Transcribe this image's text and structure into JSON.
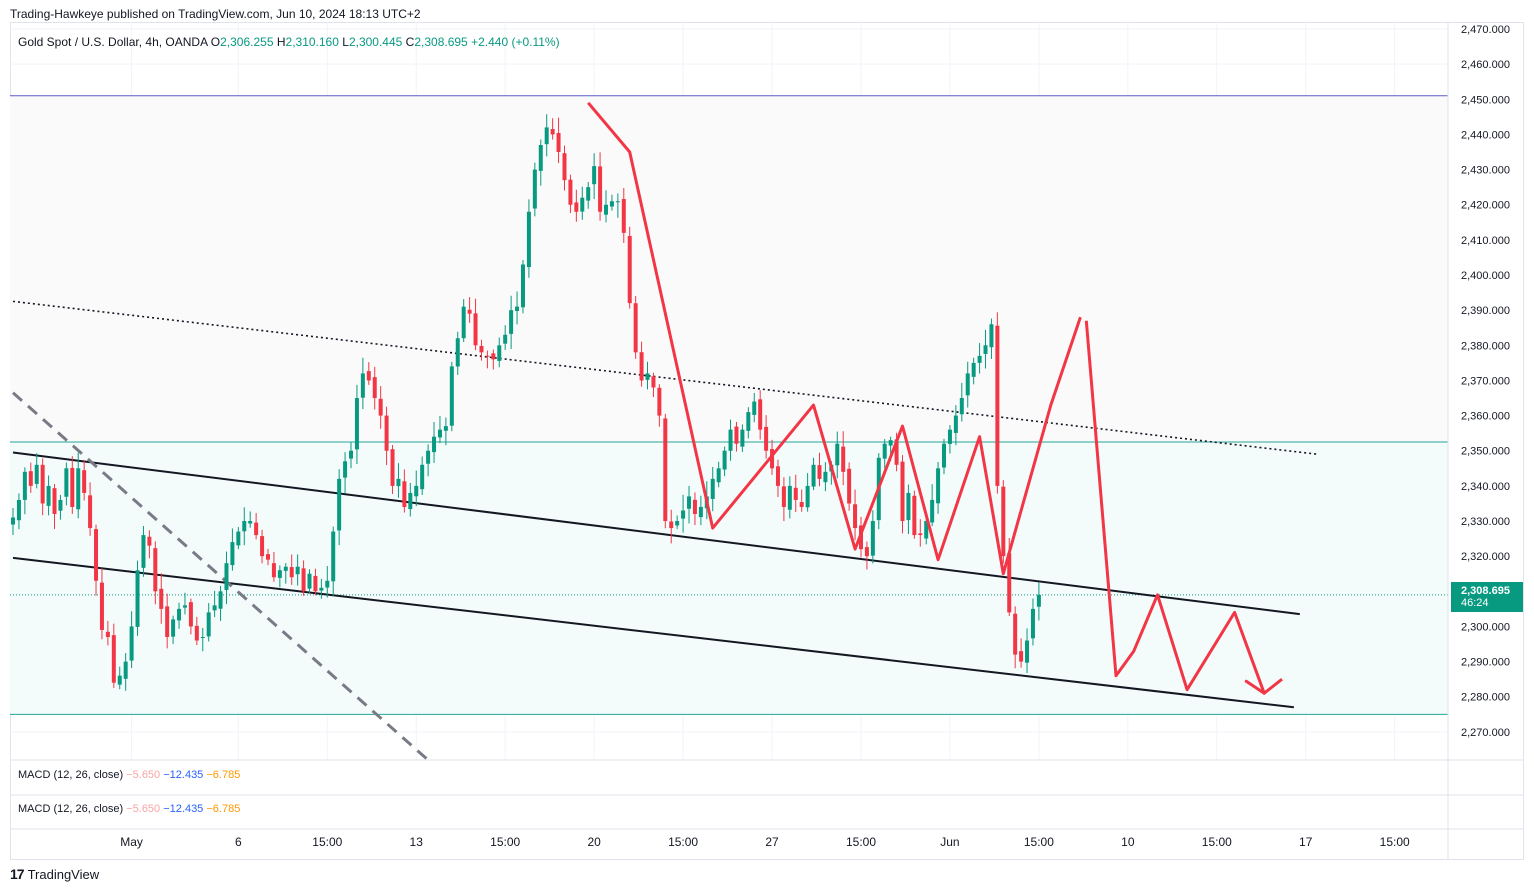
{
  "header": {
    "published": "Trading-Hawkeye published on TradingView.com, Jun 10, 2024 18:13 UTC+2"
  },
  "legend": {
    "symbol": "Gold Spot / U.S. Dollar, 4h, OANDA",
    "o_label": "O",
    "o": "2,306.255",
    "h_label": "H",
    "h": "2,310.160",
    "l_label": "L",
    "l": "2,300.445",
    "c_label": "C",
    "c": "2,308.695",
    "change": "+2.440 (+0.11%)"
  },
  "macd_panes": [
    {
      "label": "MACD (12, 26, close)",
      "v1": "−5.650",
      "v2": "−12.435",
      "v3": "−6.785"
    },
    {
      "label": "MACD (12, 26, close)",
      "v1": "−5.650",
      "v2": "−12.435",
      "v3": "−6.785"
    }
  ],
  "price_tag": {
    "price": "2,308.695",
    "countdown": "46:24"
  },
  "brand": {
    "logo": "17",
    "name": "TradingView"
  },
  "colors": {
    "up": "#089981",
    "down": "#f23645",
    "path": "#f23645",
    "hline_blue": "#5b5fc7",
    "hline_teal": "#26a69a",
    "grid": "#f0f3fa"
  },
  "chart_data": {
    "type": "candlestick",
    "symbol": "XAUUSD",
    "timeframe": "4h",
    "ylim": [
      2262,
      2472
    ],
    "y_ticks": [
      2270,
      2280,
      2290,
      2300,
      2310,
      2320,
      2330,
      2340,
      2350,
      2360,
      2370,
      2380,
      2390,
      2400,
      2410,
      2420,
      2430,
      2440,
      2450,
      2460,
      2470
    ],
    "y_tick_labels": [
      "2,270.000",
      "2,280.000",
      "2,290.000",
      "2,300.000",
      "2,310.000",
      "2,320.000",
      "2,330.000",
      "2,340.000",
      "2,350.000",
      "2,360.000",
      "2,370.000",
      "2,380.000",
      "2,390.000",
      "2,400.000",
      "2,410.000",
      "2,420.000",
      "2,430.000",
      "2,440.000",
      "2,450.000",
      "2,460.000",
      "2,470.000"
    ],
    "x_ticks": [
      {
        "bar": 20,
        "label": "May"
      },
      {
        "bar": 38,
        "label": "6"
      },
      {
        "bar": 53,
        "label": "15:00"
      },
      {
        "bar": 68,
        "label": "13"
      },
      {
        "bar": 83,
        "label": "15:00"
      },
      {
        "bar": 98,
        "label": "20"
      },
      {
        "bar": 113,
        "label": "15:00"
      },
      {
        "bar": 128,
        "label": "27"
      },
      {
        "bar": 143,
        "label": "15:00"
      },
      {
        "bar": 158,
        "label": "Jun"
      },
      {
        "bar": 173,
        "label": "15:00"
      },
      {
        "bar": 188,
        "label": "10"
      },
      {
        "bar": 203,
        "label": "15:00"
      },
      {
        "bar": 218,
        "label": "17"
      },
      {
        "bar": 233,
        "label": "15:00"
      }
    ],
    "closes": [
      2331,
      2336,
      2344,
      2340,
      2346,
      2335,
      2340,
      2332,
      2336,
      2345,
      2334,
      2345,
      2338,
      2328,
      2313,
      2299,
      2297,
      2284,
      2286,
      2290,
      2300,
      2316,
      2326,
      2323,
      2310,
      2305,
      2297,
      2302,
      2305,
      2306,
      2300,
      2296,
      2297,
      2304,
      2306,
      2310,
      2318,
      2324,
      2327,
      2330,
      2330,
      2326,
      2320,
      2319,
      2314,
      2316,
      2317,
      2314,
      2317,
      2310,
      2315,
      2310,
      2311,
      2313,
      2327,
      2342,
      2347,
      2350,
      2365,
      2372,
      2370,
      2365,
      2360,
      2350,
      2340,
      2342,
      2334,
      2338,
      2340,
      2346,
      2350,
      2354,
      2356,
      2357,
      2374,
      2382,
      2391,
      2389,
      2380,
      2378,
      2377,
      2376,
      2380,
      2383,
      2390,
      2391,
      2403,
      2418,
      2430,
      2437,
      2442,
      2440,
      2435,
      2427,
      2420,
      2418,
      2422,
      2425,
      2431,
      2418,
      2420,
      2421,
      2421,
      2412,
      2392,
      2378,
      2370,
      2372,
      2368,
      2360,
      2330,
      2328,
      2330,
      2333,
      2337,
      2332,
      2334,
      2337,
      2342,
      2345,
      2350,
      2356,
      2352,
      2356,
      2361,
      2364,
      2356,
      2350,
      2345,
      2340,
      2334,
      2340,
      2336,
      2334,
      2340,
      2346,
      2342,
      2344,
      2346,
      2352,
      2344,
      2335,
      2328,
      2322,
      2320,
      2330,
      2348,
      2352,
      2353,
      2346,
      2330,
      2338,
      2326,
      2326,
      2330,
      2336,
      2345,
      2352,
      2356,
      2360,
      2365,
      2372,
      2375,
      2377,
      2380,
      2386,
      2340,
      2320,
      2304,
      2292,
      2290,
      2296,
      2305,
      2309
    ]
  },
  "annotations": {
    "hlines": [
      {
        "price": 2451,
        "color": "hline_blue"
      },
      {
        "price": 2352.5,
        "color": "hline_teal"
      },
      {
        "price": 2275,
        "color": "hline_teal"
      }
    ],
    "trendlines": [
      {
        "style": "solid",
        "from": [
          0,
          2349.5
        ],
        "to": [
          217,
          2303.5
        ]
      },
      {
        "style": "solid",
        "from": [
          0,
          2319.5
        ],
        "to": [
          216,
          2277
        ]
      },
      {
        "style": "dotted",
        "from": [
          0,
          2392.5
        ],
        "to": [
          220,
          2349
        ]
      },
      {
        "style": "dashed",
        "from": [
          0,
          2366.5
        ],
        "to": [
          70,
          2262
        ]
      }
    ],
    "zigzag": [
      [
        97,
        2449
      ],
      [
        104,
        2435
      ],
      [
        118,
        2328
      ],
      [
        135,
        2363
      ],
      [
        142,
        2322
      ],
      [
        150,
        2357
      ],
      [
        156,
        2319
      ],
      [
        163,
        2354
      ],
      [
        167,
        2315
      ],
      [
        175,
        2363
      ],
      [
        180,
        2388
      ]
    ],
    "drop": [
      [
        181,
        2387
      ],
      [
        186,
        2286
      ],
      [
        189,
        2293
      ],
      [
        193,
        2309
      ],
      [
        198,
        2282
      ],
      [
        206,
        2304
      ],
      [
        211,
        2281
      ],
      [
        214,
        2285
      ]
    ]
  }
}
